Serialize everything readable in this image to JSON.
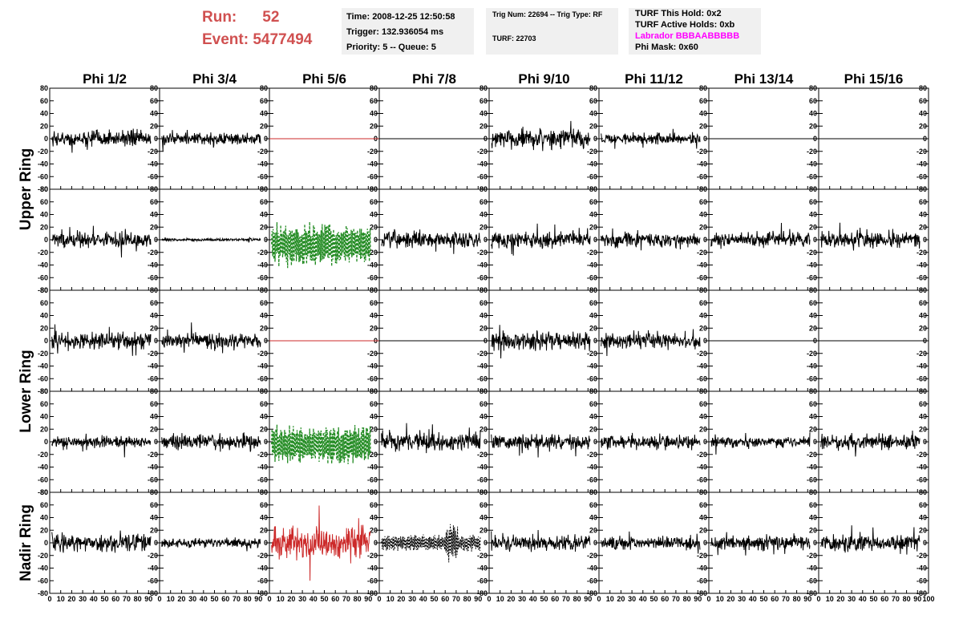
{
  "header": {
    "run_label": "Run:",
    "run_value": "52",
    "event_label": "Event:",
    "event_value": "5477494",
    "time_line": "Time: 2008-12-25 12:50:58",
    "trigger_line": "Trigger: 132.936054 ms",
    "priority_line": "Priority: 5 -- Queue: 5",
    "trig_line": "Trig Num: 22694 -- Trig Type: RF",
    "turf_line": "TURF: 22703",
    "turf_hold_line": "TURF This Hold: 0x2",
    "turf_active_line": "TURF Active Holds: 0xb",
    "labrador_line": "Labrador BBBAABBBBB",
    "phi_mask_line": "Phi Mask: 0x60",
    "run_color": "#d05050",
    "labrador_color": "#ff00ff"
  },
  "chart_data": {
    "type": "line",
    "columns": [
      "Phi 1/2",
      "Phi 3/4",
      "Phi 5/6",
      "Phi 7/8",
      "Phi 9/10",
      "Phi 11/12",
      "Phi 13/14",
      "Phi 15/16"
    ],
    "ring_labels": [
      {
        "name": "Upper Ring",
        "rows": [
          0,
          1
        ]
      },
      {
        "name": "Lower Ring",
        "rows": [
          2,
          3
        ]
      },
      {
        "name": "Nadir Ring",
        "rows": [
          4
        ]
      }
    ],
    "xlim": [
      0,
      100
    ],
    "ylim": [
      -80,
      80
    ],
    "x_ticks": [
      "0",
      "10",
      "20",
      "30",
      "40",
      "50",
      "60",
      "70",
      "80",
      "90"
    ],
    "x_ticks_last": [
      "0",
      "10",
      "20",
      "30",
      "40",
      "50",
      "60",
      "70",
      "80",
      "90",
      "100"
    ],
    "y_ticks": [
      "80",
      "60",
      "40",
      "20",
      "0",
      "-20",
      "-40",
      "-60",
      "-80"
    ],
    "colors": {
      "normal": "#000000",
      "green": "#228b22",
      "red": "#cc2a2a"
    },
    "panels": [
      [
        {
          "style": "noise",
          "amp": 12,
          "color": "normal"
        },
        {
          "style": "noise",
          "amp": 9,
          "color": "normal"
        },
        {
          "style": "flat",
          "color": "red"
        },
        {
          "style": "flat",
          "color": "normal"
        },
        {
          "style": "noise",
          "amp": 15,
          "color": "normal"
        },
        {
          "style": "noise",
          "amp": 8,
          "color": "normal"
        },
        {
          "style": "flat",
          "color": "normal"
        },
        {
          "style": "flat",
          "color": "normal"
        }
      ],
      [
        {
          "style": "noise",
          "amp": 12,
          "color": "normal"
        },
        {
          "style": "noise",
          "amp": 2,
          "color": "normal"
        },
        {
          "style": "dashed",
          "amp": 28,
          "offset": -8,
          "color": "green"
        },
        {
          "style": "noise",
          "amp": 12,
          "color": "normal"
        },
        {
          "style": "noise",
          "amp": 12,
          "color": "normal"
        },
        {
          "style": "noise",
          "amp": 11,
          "color": "normal"
        },
        {
          "style": "noise",
          "amp": 11,
          "color": "normal"
        },
        {
          "style": "noise",
          "amp": 12,
          "color": "normal"
        }
      ],
      [
        {
          "style": "noise",
          "amp": 12,
          "color": "normal"
        },
        {
          "style": "noise",
          "amp": 12,
          "color": "normal"
        },
        {
          "style": "flat",
          "color": "red"
        },
        {
          "style": "flat",
          "color": "normal"
        },
        {
          "style": "noise",
          "amp": 14,
          "color": "normal"
        },
        {
          "style": "noise",
          "amp": 12,
          "color": "normal"
        },
        {
          "style": "flat",
          "color": "normal"
        },
        {
          "style": "flat",
          "color": "normal"
        }
      ],
      [
        {
          "style": "noise",
          "amp": 8,
          "color": "normal"
        },
        {
          "style": "noise",
          "amp": 12,
          "color": "normal"
        },
        {
          "style": "dashed",
          "amp": 26,
          "offset": -5,
          "color": "green"
        },
        {
          "style": "noise",
          "amp": 14,
          "color": "normal"
        },
        {
          "style": "noise",
          "amp": 12,
          "color": "normal"
        },
        {
          "style": "noise",
          "amp": 11,
          "color": "normal"
        },
        {
          "style": "noise",
          "amp": 8,
          "color": "normal"
        },
        {
          "style": "noise",
          "amp": 11,
          "color": "normal"
        }
      ],
      [
        {
          "style": "noise",
          "amp": 14,
          "color": "normal"
        },
        {
          "style": "noise",
          "amp": 8,
          "color": "normal"
        },
        {
          "style": "noise",
          "amp": 24,
          "color": "red"
        },
        {
          "style": "dotted",
          "amp": 14,
          "color": "normal"
        },
        {
          "style": "noise",
          "amp": 12,
          "color": "normal"
        },
        {
          "style": "noise",
          "amp": 10,
          "color": "normal"
        },
        {
          "style": "noise",
          "amp": 11,
          "color": "normal"
        },
        {
          "style": "noise",
          "amp": 13,
          "color": "normal"
        }
      ]
    ]
  }
}
